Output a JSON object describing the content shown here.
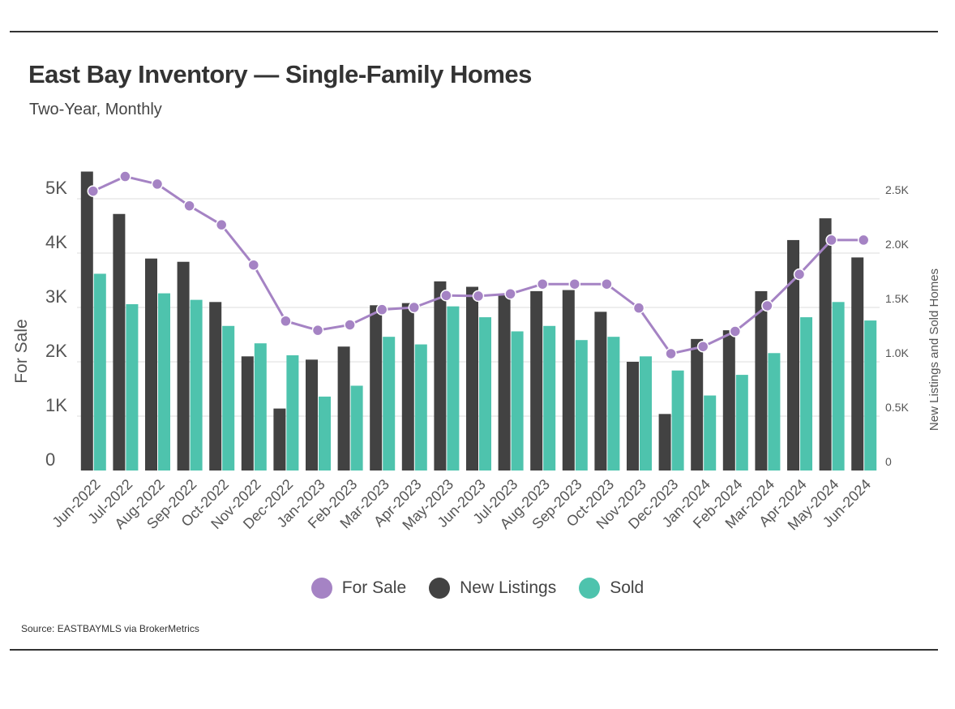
{
  "header": {
    "title": "East Bay Inventory — Single-Family Homes",
    "subtitle": "Two-Year, Monthly"
  },
  "footer": {
    "source": "Source:  EASTBAYMLS via BrokerMetrics"
  },
  "colors": {
    "for_sale": "#a583c4",
    "new_listings": "#424242",
    "sold": "#4ec3ad",
    "grid": "#dcdcdc",
    "axis": "#555555"
  },
  "chart_data": {
    "type": "bar",
    "title": "East Bay Inventory — Single-Family Homes",
    "subtitle": "Two-Year, Monthly",
    "categories": [
      "Jun-2022",
      "Jul-2022",
      "Aug-2022",
      "Sep-2022",
      "Oct-2022",
      "Nov-2022",
      "Dec-2022",
      "Jan-2023",
      "Feb-2023",
      "Mar-2023",
      "Apr-2023",
      "May-2023",
      "Jun-2023",
      "Jul-2023",
      "Aug-2023",
      "Sep-2023",
      "Oct-2023",
      "Nov-2023",
      "Dec-2023",
      "Jan-2024",
      "Feb-2024",
      "Mar-2024",
      "Apr-2024",
      "May-2024",
      "Jun-2024"
    ],
    "ylabel": "For Sale",
    "y2label": "New Listings and Sold Homes",
    "ylim": [
      0,
      5000
    ],
    "y2lim": [
      0,
      2500
    ],
    "yticks": [
      0,
      1000,
      2000,
      3000,
      4000,
      5000
    ],
    "ytick_labels": [
      "0",
      "1K",
      "2K",
      "3K",
      "4K",
      "5K"
    ],
    "y2ticks": [
      0,
      500,
      1000,
      1500,
      2000,
      2500
    ],
    "y2tick_labels": [
      "0",
      "0.5K",
      "1.0K",
      "1.5K",
      "2.0K",
      "2.5K"
    ],
    "grid": true,
    "legend_position": "bottom",
    "series": [
      {
        "name": "For Sale",
        "type": "line",
        "axis": "left",
        "values": [
          5140,
          5410,
          5270,
          4870,
          4520,
          3780,
          2750,
          2580,
          2680,
          2960,
          3000,
          3220,
          3210,
          3250,
          3430,
          3430,
          3430,
          2990,
          2150,
          2280,
          2560,
          3030,
          3610,
          4240,
          4240
        ]
      },
      {
        "name": "New Listings",
        "type": "bar",
        "axis": "right",
        "values": [
          2750,
          2360,
          1950,
          1920,
          1550,
          1050,
          570,
          1020,
          1140,
          1520,
          1540,
          1740,
          1690,
          1620,
          1650,
          1660,
          1460,
          1000,
          520,
          1210,
          1290,
          1650,
          2120,
          2320,
          1960
        ]
      },
      {
        "name": "Sold",
        "type": "bar",
        "axis": "right",
        "values": [
          1810,
          1530,
          1630,
          1570,
          1330,
          1170,
          1060,
          680,
          780,
          1230,
          1160,
          1510,
          1410,
          1280,
          1330,
          1200,
          1230,
          1050,
          920,
          690,
          880,
          1080,
          1410,
          1550,
          1380
        ]
      }
    ]
  }
}
